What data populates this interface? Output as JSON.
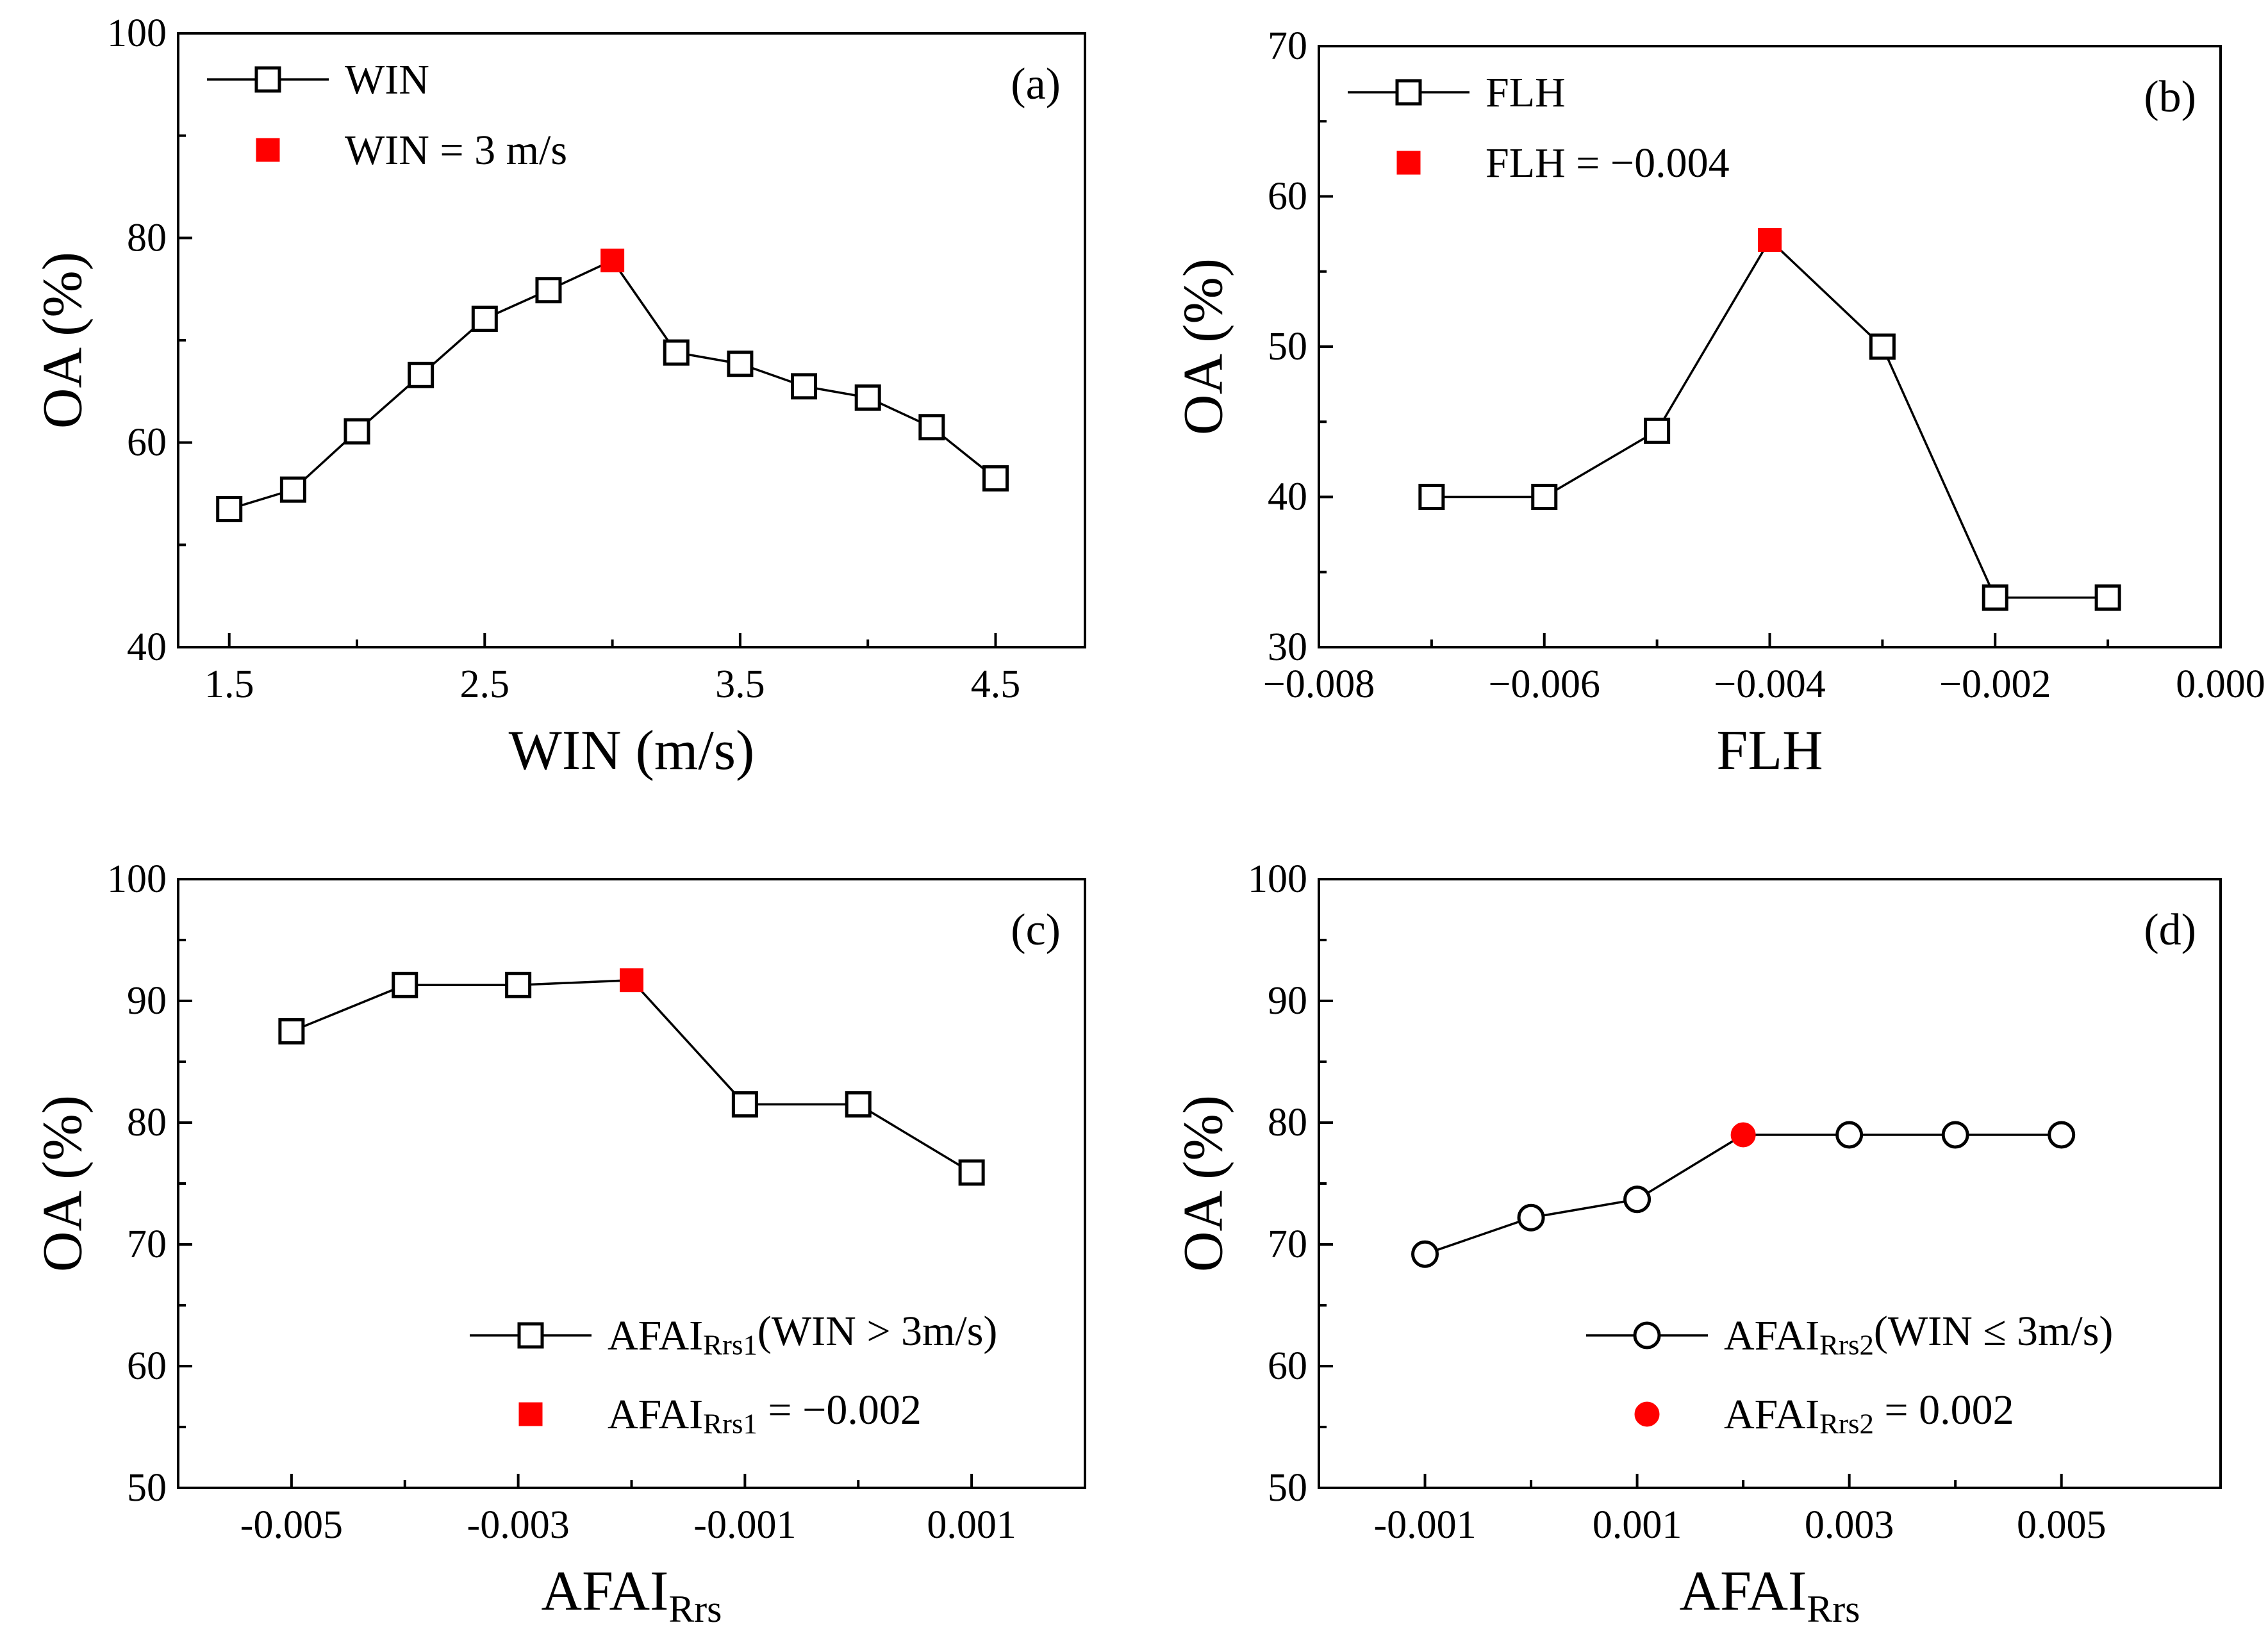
{
  "chart_data": [
    {
      "type": "line",
      "panel_label": "(a)",
      "xlabel": "WIN (m/s)",
      "xlabel_sub": "",
      "ylabel": "OA (%)",
      "xlim": [
        1.3,
        4.85
      ],
      "ylim": [
        40,
        100
      ],
      "xticks": [
        1.5,
        2.5,
        3.5,
        4.5
      ],
      "xtick_labels": [
        "1.5",
        "2.5",
        "3.5",
        "4.5"
      ],
      "yticks": [
        40,
        60,
        80,
        100
      ],
      "ytick_labels": [
        "40",
        "60",
        "80",
        "100"
      ],
      "ymajor": 20,
      "marker": "square",
      "legend_position": "top-left",
      "series": [
        {
          "name": "WIN",
          "x": [
            1.5,
            1.75,
            2.0,
            2.25,
            2.5,
            2.75,
            3.0,
            3.25,
            3.5,
            3.75,
            4.0,
            4.25,
            4.5
          ],
          "y": [
            53.5,
            55.4,
            61.1,
            66.6,
            72.1,
            74.9,
            77.8,
            68.8,
            67.7,
            65.5,
            64.4,
            61.5,
            56.5
          ]
        }
      ],
      "highlight": {
        "name": "WIN = 3 m/s",
        "name_sub": "",
        "name_rest": "",
        "x": 3.0,
        "y": 77.8,
        "color": "#ff0000"
      }
    },
    {
      "type": "line",
      "panel_label": "(b)",
      "xlabel": "FLH",
      "xlabel_sub": "",
      "ylabel": "OA (%)",
      "xlim": [
        -0.008,
        0.0
      ],
      "ylim": [
        30,
        70
      ],
      "xticks": [
        -0.008,
        -0.006,
        -0.004,
        -0.002,
        0.0
      ],
      "xtick_labels": [
        "−0.008",
        "−0.006",
        "−0.004",
        "−0.002",
        "0.000"
      ],
      "yticks": [
        30,
        40,
        50,
        60,
        70
      ],
      "ytick_labels": [
        "30",
        "40",
        "50",
        "60",
        "70"
      ],
      "ymajor": 10,
      "marker": "square",
      "legend_position": "top-left",
      "series": [
        {
          "name": "FLH",
          "x": [
            -0.007,
            -0.006,
            -0.005,
            -0.004,
            -0.003,
            -0.002,
            -0.001
          ],
          "y": [
            40.0,
            40.0,
            44.4,
            57.1,
            50.0,
            33.3,
            33.3
          ]
        }
      ],
      "highlight": {
        "name": "FLH = −0.004",
        "name_sub": "",
        "name_rest": "",
        "x": -0.004,
        "y": 57.1,
        "color": "#ff0000"
      }
    },
    {
      "type": "line",
      "panel_label": "(c)",
      "xlabel": "AFAI",
      "xlabel_sub": "Rrs",
      "ylabel": "OA (%)",
      "xlim": [
        -0.006,
        0.002
      ],
      "ylim": [
        50,
        100
      ],
      "xticks": [
        -0.005,
        -0.003,
        -0.001,
        0.001
      ],
      "xtick_labels": [
        "-0.005",
        "-0.003",
        "-0.001",
        "0.001"
      ],
      "yticks": [
        50,
        60,
        70,
        80,
        90,
        100
      ],
      "ytick_labels": [
        "50",
        "60",
        "70",
        "80",
        "90",
        "100"
      ],
      "ymajor": 10,
      "marker": "square",
      "legend_position": "bottom-right",
      "series": [
        {
          "name": "AFAI",
          "name_sub": "Rrs1",
          "name_rest": "(WIN > 3m/s)",
          "x": [
            -0.005,
            -0.004,
            -0.003,
            -0.002,
            -0.001,
            0.0,
            0.001
          ],
          "y": [
            87.5,
            91.3,
            91.3,
            91.7,
            81.5,
            81.5,
            75.9
          ]
        }
      ],
      "highlight": {
        "name": "AFAI",
        "name_sub": "Rrs1",
        "name_rest": " = −0.002",
        "x": -0.002,
        "y": 91.7,
        "color": "#ff0000"
      }
    },
    {
      "type": "line",
      "panel_label": "(d)",
      "xlabel": "AFAI",
      "xlabel_sub": "Rrs",
      "ylabel": "OA (%)",
      "xlim": [
        -0.002,
        0.0065
      ],
      "ylim": [
        50,
        100
      ],
      "xticks": [
        -0.001,
        0.001,
        0.003,
        0.005
      ],
      "xtick_labels": [
        "-0.001",
        "0.001",
        "0.003",
        "0.005"
      ],
      "yticks": [
        50,
        60,
        70,
        80,
        90,
        100
      ],
      "ytick_labels": [
        "50",
        "60",
        "70",
        "80",
        "90",
        "100"
      ],
      "ymajor": 10,
      "marker": "circle",
      "legend_position": "bottom-right",
      "series": [
        {
          "name": "AFAI",
          "name_sub": "Rrs2",
          "name_rest": "(WIN ≤ 3m/s)",
          "x": [
            -0.001,
            0.0,
            0.001,
            0.002,
            0.003,
            0.004,
            0.005
          ],
          "y": [
            69.2,
            72.2,
            73.7,
            79.0,
            79.0,
            79.0,
            79.0
          ]
        }
      ],
      "highlight": {
        "name": "AFAI",
        "name_sub": "Rrs2",
        "name_rest": " = 0.002",
        "x": 0.002,
        "y": 79.0,
        "color": "#ff0000"
      }
    }
  ]
}
